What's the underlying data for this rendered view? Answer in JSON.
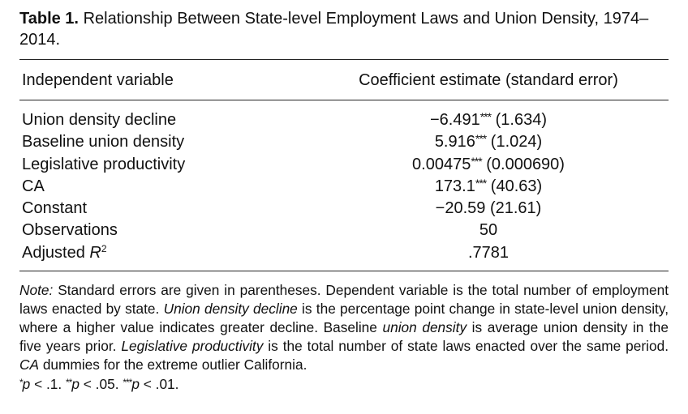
{
  "caption": {
    "label": "Table 1.",
    "title": "Relationship Between State-level Employment Laws and Union Density, 1974–2014."
  },
  "header": {
    "variable": "Independent variable",
    "coefficient": "Coefficient estimate (standard error)"
  },
  "rows": [
    {
      "variable": "Union density decline",
      "estimate": "−6.491",
      "stars": "***",
      "se": " (1.634)"
    },
    {
      "variable": "Baseline union density",
      "estimate": "5.916",
      "stars": "***",
      "se": " (1.024)"
    },
    {
      "variable": "Legislative productivity",
      "estimate": "0.00475",
      "stars": "***",
      "se": " (0.000690)"
    },
    {
      "variable": "CA",
      "estimate": "173.1",
      "stars": "***",
      "se": " (40.63)"
    },
    {
      "variable": "Constant",
      "estimate": "−20.59",
      "stars": "",
      "se": " (21.61)"
    },
    {
      "variable": "Observations",
      "estimate": "50",
      "stars": "",
      "se": ""
    },
    {
      "variable": "Adjusted R",
      "variable_sup": "2",
      "estimate": ".7781",
      "stars": "",
      "se": ""
    }
  ],
  "note": {
    "label": "Note:",
    "t1": " Standard errors are given in parentheses. Dependent variable is the total number of employment laws enacted by state. ",
    "i1": "Union density decline",
    "t2": " is the percentage point change in state-level union density, where a higher value indicates greater decline. Baseline ",
    "i2": "union density",
    "t3": " is average union density in the five years prior. ",
    "i3": "Legislative productivity",
    "t4": " is the total number of state laws enacted over the same period. ",
    "i4": "CA",
    "t5": " dummies for the extreme outlier California."
  },
  "significance": {
    "s1_stars": "*",
    "s1_p": "p",
    "s1_val": " < .1. ",
    "s2_stars": "**",
    "s2_p": "p",
    "s2_val": " < .05. ",
    "s3_stars": "***",
    "s3_p": "p",
    "s3_val": " < .01."
  }
}
